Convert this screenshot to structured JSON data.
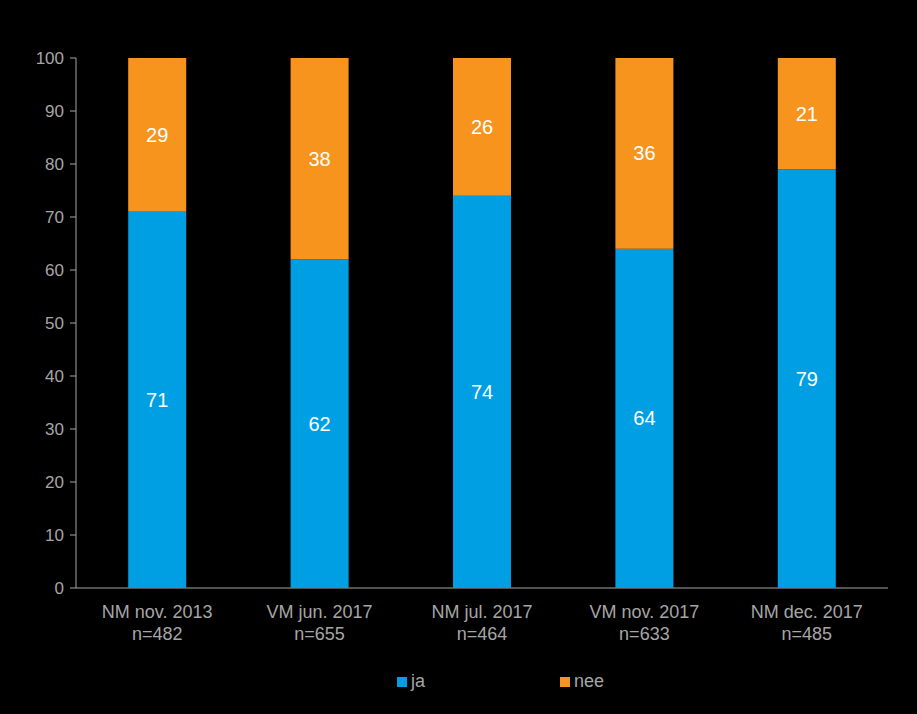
{
  "chart_data": {
    "type": "bar",
    "stacked": true,
    "data_labels": true,
    "grid": false,
    "legend": "bottom",
    "categories": [
      "NM nov. 2013\nn=482",
      "VM jun. 2017\nn=655",
      "NM jul. 2017\nn=464",
      "VM nov. 2017\nn=633",
      "NM dec. 2017\nn=485"
    ],
    "series": [
      {
        "name": "ja",
        "color": "#009fe3",
        "values": [
          71,
          62,
          74,
          64,
          79
        ]
      },
      {
        "name": "nee",
        "color": "#f7941d",
        "values": [
          29,
          38,
          26,
          36,
          21
        ]
      }
    ],
    "ylim": [
      0,
      100
    ],
    "yticks": [
      0,
      10,
      20,
      30,
      40,
      50,
      60,
      70,
      80,
      90,
      100
    ]
  }
}
